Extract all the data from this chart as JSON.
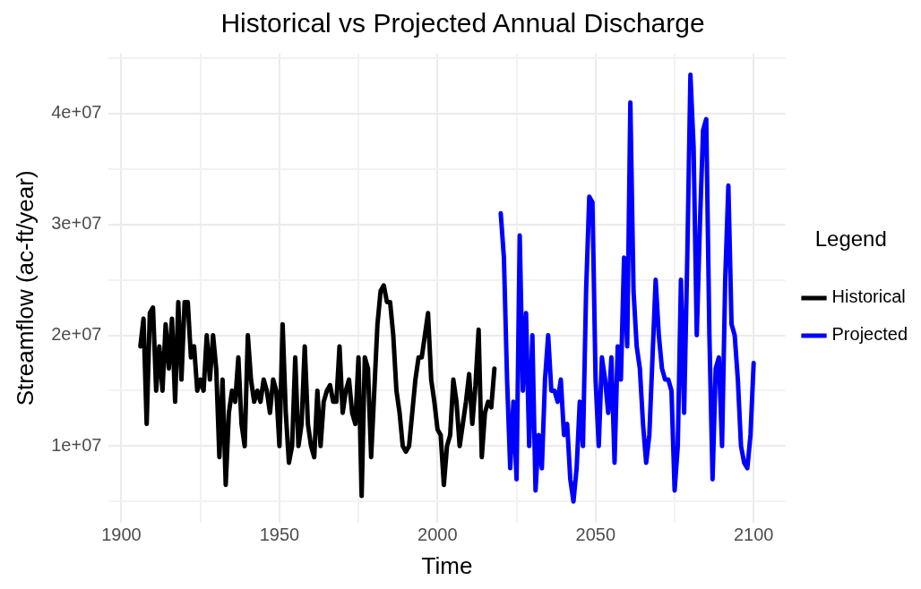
{
  "chart_data": {
    "type": "line",
    "title": "Historical vs Projected Annual Discharge",
    "xlabel": "Time",
    "ylabel": "Streamflow (ac-ft/year)",
    "legend_title": "Legend",
    "legend": "right",
    "grid": true,
    "marker": "none",
    "line_style": "solid",
    "xlim": [
      1896,
      2110
    ],
    "xticks": [
      {
        "value": 1900,
        "label": "1900"
      },
      {
        "value": 1925,
        "label": null
      },
      {
        "value": 1950,
        "label": "1950"
      },
      {
        "value": 1975,
        "label": null
      },
      {
        "value": 2000,
        "label": "2000"
      },
      {
        "value": 2025,
        "label": null
      },
      {
        "value": 2050,
        "label": "2050"
      },
      {
        "value": 2075,
        "label": null
      },
      {
        "value": 2100,
        "label": "2100"
      }
    ],
    "ylim": [
      3100000,
      45400000
    ],
    "yticks": [
      {
        "value": 5000000,
        "label": null
      },
      {
        "value": 10000000,
        "label": "1e+07"
      },
      {
        "value": 15000000,
        "label": null
      },
      {
        "value": 20000000,
        "label": "2e+07"
      },
      {
        "value": 25000000,
        "label": null
      },
      {
        "value": 30000000,
        "label": "3e+07"
      },
      {
        "value": 35000000,
        "label": null
      },
      {
        "value": 40000000,
        "label": "4e+07"
      },
      {
        "value": 45000000,
        "label": null
      }
    ],
    "series": [
      {
        "name": "Historical",
        "color": "#000000",
        "x": [
          1906,
          1907,
          1908,
          1909,
          1910,
          1911,
          1912,
          1913,
          1914,
          1915,
          1916,
          1917,
          1918,
          1919,
          1920,
          1921,
          1922,
          1923,
          1924,
          1925,
          1926,
          1927,
          1928,
          1929,
          1930,
          1931,
          1932,
          1933,
          1934,
          1935,
          1936,
          1937,
          1938,
          1939,
          1940,
          1941,
          1942,
          1943,
          1944,
          1945,
          1946,
          1947,
          1948,
          1949,
          1950,
          1951,
          1952,
          1953,
          1954,
          1955,
          1956,
          1957,
          1958,
          1959,
          1960,
          1961,
          1962,
          1963,
          1964,
          1965,
          1966,
          1967,
          1968,
          1969,
          1970,
          1971,
          1972,
          1973,
          1974,
          1975,
          1976,
          1977,
          1978,
          1979,
          1980,
          1981,
          1982,
          1983,
          1984,
          1985,
          1986,
          1987,
          1988,
          1989,
          1990,
          1991,
          1992,
          1993,
          1994,
          1995,
          1996,
          1997,
          1998,
          1999,
          2000,
          2001,
          2002,
          2003,
          2004,
          2005,
          2006,
          2007,
          2008,
          2009,
          2010,
          2011,
          2012,
          2013,
          2014,
          2015,
          2016,
          2017,
          2018
        ],
        "values": [
          19000000,
          21500000,
          12000000,
          22000000,
          22500000,
          15000000,
          19000000,
          15000000,
          21000000,
          17000000,
          21500000,
          14000000,
          23000000,
          16000000,
          23000000,
          23000000,
          18000000,
          19000000,
          15000000,
          16000000,
          15000000,
          20000000,
          16000000,
          20000000,
          17000000,
          9000000,
          16000000,
          6500000,
          13000000,
          15000000,
          14000000,
          18000000,
          12000000,
          10000000,
          20000000,
          16000000,
          14000000,
          15000000,
          14000000,
          16000000,
          15000000,
          13000000,
          16000000,
          15000000,
          10000000,
          21000000,
          13000000,
          8500000,
          10000000,
          18000000,
          10000000,
          12000000,
          19000000,
          12000000,
          10000000,
          9000000,
          15000000,
          10000000,
          14000000,
          15000000,
          15500000,
          14000000,
          14000000,
          19000000,
          13000000,
          15000000,
          16000000,
          13000000,
          12000000,
          18000000,
          5500000,
          18000000,
          17000000,
          9000000,
          15000000,
          21000000,
          24000000,
          24500000,
          23000000,
          23000000,
          20000000,
          15000000,
          13000000,
          10000000,
          9500000,
          10000000,
          13000000,
          16000000,
          18000000,
          18000000,
          20000000,
          22000000,
          16000000,
          14000000,
          11500000,
          11000000,
          6500000,
          10000000,
          11000000,
          16000000,
          14000000,
          10000000,
          12000000,
          14000000,
          16500000,
          12000000,
          15500000,
          20500000,
          9000000,
          13000000,
          14000000,
          13500000,
          17000000
        ]
      },
      {
        "name": "Projected",
        "color": "#0000ff",
        "x": [
          2020,
          2021,
          2022,
          2023,
          2024,
          2025,
          2026,
          2027,
          2028,
          2029,
          2030,
          2031,
          2032,
          2033,
          2034,
          2035,
          2036,
          2037,
          2038,
          2039,
          2040,
          2041,
          2042,
          2043,
          2044,
          2045,
          2046,
          2047,
          2048,
          2049,
          2050,
          2051,
          2052,
          2053,
          2054,
          2055,
          2056,
          2057,
          2058,
          2059,
          2060,
          2061,
          2062,
          2063,
          2064,
          2065,
          2066,
          2067,
          2068,
          2069,
          2070,
          2071,
          2072,
          2073,
          2074,
          2075,
          2076,
          2077,
          2078,
          2079,
          2080,
          2081,
          2082,
          2083,
          2084,
          2085,
          2086,
          2087,
          2088,
          2089,
          2090,
          2091,
          2092,
          2093,
          2094,
          2095,
          2096,
          2097,
          2098,
          2099,
          2100
        ],
        "values": [
          31000000,
          27000000,
          16000000,
          8000000,
          14000000,
          7000000,
          29000000,
          15000000,
          22000000,
          10000000,
          20000000,
          6000000,
          11000000,
          8000000,
          16000000,
          20000000,
          15000000,
          15000000,
          14000000,
          16000000,
          11000000,
          12000000,
          7000000,
          5000000,
          8000000,
          14000000,
          10000000,
          24000000,
          32500000,
          32000000,
          16000000,
          10000000,
          18000000,
          16000000,
          13000000,
          18000000,
          8500000,
          19000000,
          16000000,
          27000000,
          19000000,
          41000000,
          24000000,
          19000000,
          17000000,
          12000000,
          8500000,
          11000000,
          18000000,
          25000000,
          20000000,
          17000000,
          16000000,
          16000000,
          15000000,
          6000000,
          10000000,
          25000000,
          13000000,
          27000000,
          43500000,
          37000000,
          20000000,
          30000000,
          38500000,
          39500000,
          20000000,
          7000000,
          17000000,
          18000000,
          10000000,
          25000000,
          33500000,
          21000000,
          20000000,
          16000000,
          10000000,
          8500000,
          8000000,
          11000000,
          17500000
        ]
      }
    ]
  }
}
